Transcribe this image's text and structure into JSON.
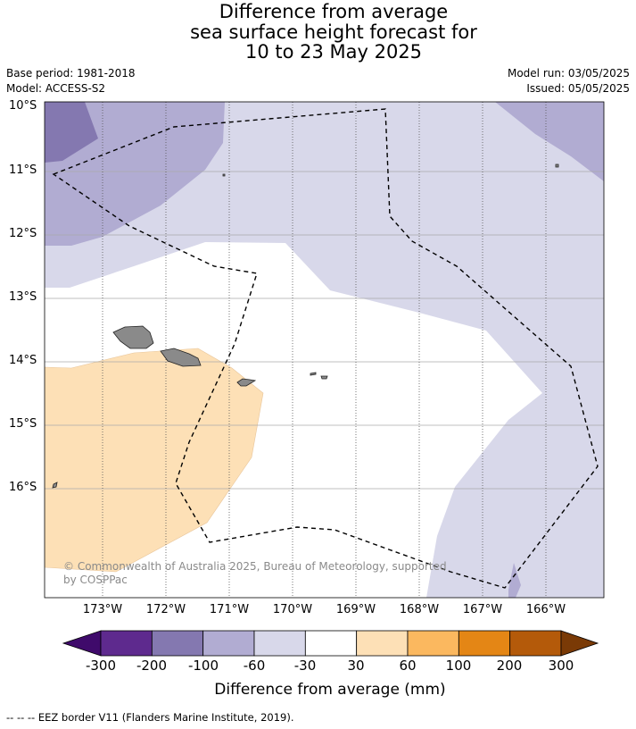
{
  "title": {
    "line1": "Difference from average",
    "line2": "sea surface height forecast for",
    "line3": "10 to 23 May 2025"
  },
  "meta": {
    "base_period": "Base period: 1981-2018",
    "model": "Model: ACCESS-S2",
    "model_run": "Model run: 03/05/2025",
    "issued": "Issued: 05/05/2025"
  },
  "map": {
    "lat_labels": [
      "10°S",
      "11°S",
      "12°S",
      "13°S",
      "14°S",
      "15°S",
      "16°S"
    ],
    "lon_labels": [
      "173°W",
      "172°W",
      "171°W",
      "170°W",
      "169°W",
      "168°W",
      "167°W",
      "166°W"
    ],
    "copyright": "© Commonwealth of Australia 2025, Bureau of Meteorology, supported by COSPPac",
    "colors": {
      "land": "#8a8a8a",
      "class_m200_m100": "#8478b0",
      "class_m100_m60": "#b1acd2",
      "class_m60_m30": "#d8d8ea",
      "class_m30_30": "#ffffff",
      "class_30_60": "#fde0b6"
    }
  },
  "colorbar": {
    "ticks": [
      "-300",
      "-200",
      "-100",
      "-60",
      "-30",
      "30",
      "60",
      "100",
      "200",
      "300"
    ],
    "colors": [
      "#3f0a6b",
      "#5e2a8e",
      "#8478b0",
      "#b1acd2",
      "#d8d8ea",
      "#ffffff",
      "#fde0b6",
      "#fbb85f",
      "#e48615",
      "#b45a0a",
      "#7a3a06"
    ],
    "label": "Difference from average (mm)"
  },
  "footnote": "--  --  -- EEZ border V11 (Flanders Marine Institute, 2019)."
}
